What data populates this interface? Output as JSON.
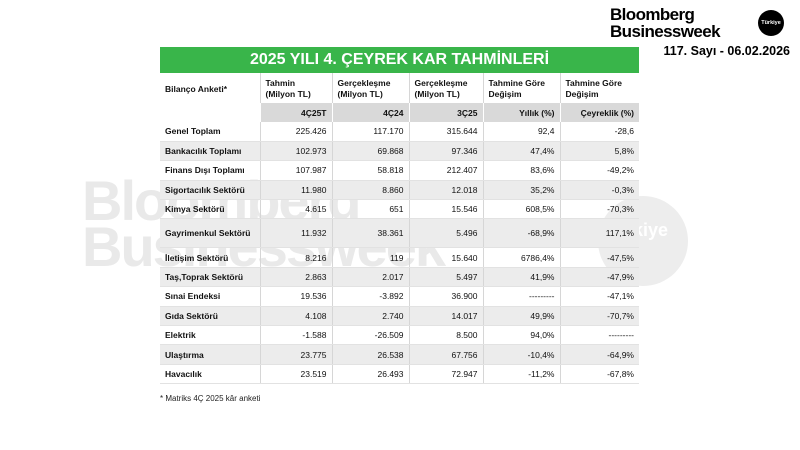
{
  "brand": {
    "line1": "Bloomberg",
    "line2": "Businessweek",
    "badge": "Türkiye",
    "issue": "117. Sayı - 06.02.2026"
  },
  "watermark": {
    "line1": "Bloomberg",
    "line2": "Businessweek",
    "badge": "rkiye"
  },
  "table": {
    "title": "2025 YILI 4. ÇEYREK KAR TAHMİNLERİ",
    "headers": [
      "Bilanço Anketi*",
      "Tahmin (Milyon TL)",
      "Gerçekleşme (Milyon TL)",
      "Gerçekleşme (Milyon TL)",
      "Tahmine Göre Değişim",
      "Tahmine Göre Değişim"
    ],
    "subheaders": [
      "",
      "4Ç25T",
      "4Ç24",
      "3Ç25",
      "Yıllık (%)",
      "Çeyreklik (%)"
    ],
    "rows": [
      [
        "Genel Toplam",
        "225.426",
        "117.170",
        "315.644",
        "92,4",
        "-28,6"
      ],
      [
        "Bankacılık Toplamı",
        "102.973",
        "69.868",
        "97.346",
        "47,4%",
        "5,8%"
      ],
      [
        "Finans Dışı Toplamı",
        "107.987",
        "58.818",
        "212.407",
        "83,6%",
        "-49,2%"
      ],
      [
        "Sigortacılık Sektörü",
        "11.980",
        "8.860",
        "12.018",
        "35,2%",
        "-0,3%"
      ],
      [
        "Kimya Sektörü",
        "4.615",
        "651",
        "15.546",
        "608,5%",
        "-70,3%"
      ],
      [
        "Gayrimenkul Sektörü",
        "11.932",
        "38.361",
        "5.496",
        "-68,9%",
        "117,1%"
      ],
      [
        "İletişim Sektörü",
        "8.216",
        "119",
        "15.640",
        "6786,4%",
        "-47,5%"
      ],
      [
        "Taş,Toprak Sektörü",
        "2.863",
        "2.017",
        "5.497",
        "41,9%",
        "-47,9%"
      ],
      [
        "Sınai Endeksi",
        "19.536",
        "-3.892",
        "36.900",
        "---------",
        "-47,1%"
      ],
      [
        "Gıda Sektörü",
        "4.108",
        "2.740",
        "14.017",
        "49,9%",
        "-70,7%"
      ],
      [
        "Elektrik",
        "-1.588",
        "-26.509",
        "8.500",
        "94,0%",
        "---------"
      ],
      [
        "Ulaştırma",
        "23.775",
        "26.538",
        "67.756",
        "-10,4%",
        "-64,9%"
      ],
      [
        "Havacılık",
        "23.519",
        "26.493",
        "72.947",
        "-11,2%",
        "-67,8%"
      ]
    ]
  },
  "footnote": "* Matriks 4Ç 2025 kâr anketi",
  "colors": {
    "title_bar": "#39b54a",
    "subheader_fill": "#d9d9d9",
    "stripe": "#ececec"
  }
}
